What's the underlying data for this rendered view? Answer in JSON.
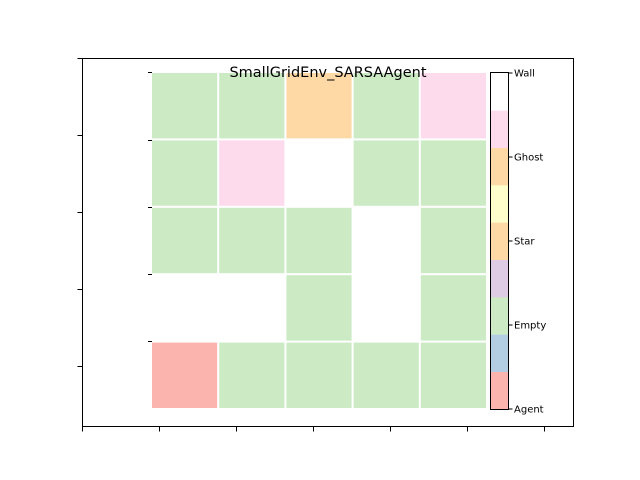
{
  "title": "SmallGridEnv_SARSAAgent",
  "grid": {
    "rows": 5,
    "cols": 5,
    "cells": [
      [
        "Empty",
        "Empty",
        "Star",
        "Empty",
        "Ghost"
      ],
      [
        "Empty",
        "Ghost",
        "Wall",
        "Empty",
        "Empty"
      ],
      [
        "Empty",
        "Empty",
        "Empty",
        "Wall",
        "Empty"
      ],
      [
        "Wall",
        "Wall",
        "Empty",
        "Wall",
        "Empty"
      ],
      [
        "Agent",
        "Empty",
        "Empty",
        "Empty",
        "Empty"
      ]
    ]
  },
  "cell_colors": {
    "Wall": "#ffffff",
    "Ghost": "#fddaec",
    "Star": "#fed9a6",
    "Empty": "#ccebc5",
    "Agent": "#fbb4ae"
  },
  "colorbar": {
    "segments": [
      "#fbb4ae",
      "#b3cde3",
      "#ccebc5",
      "#decbe4",
      "#fed9a6",
      "#ffffcc",
      "#fed9a6",
      "#fddaec",
      "#ffffff"
    ],
    "labels": [
      "Agent",
      "Empty",
      "Star",
      "Ghost",
      "Wall"
    ]
  }
}
